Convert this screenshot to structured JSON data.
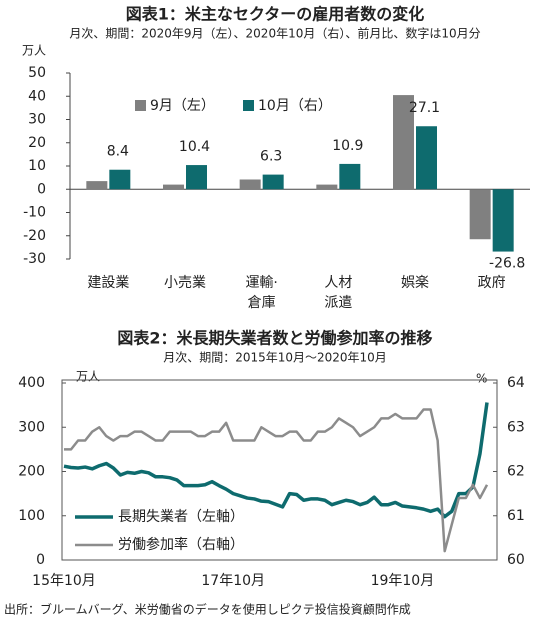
{
  "chart_data": [
    {
      "type": "bar",
      "title": "図表1：米主なセクターの雇用者数の変化",
      "subtitle": "月次、期間：2020年9月（左）、2020年10月（右）、前月比、数字は10月分",
      "y_unit": "万人",
      "categories": [
        "建設業",
        "小売業",
        "運輸·\n倉庫",
        "人材\n派遣",
        "娯楽",
        "政府"
      ],
      "series": [
        {
          "name": "9月（左）",
          "color": "#808080",
          "values": [
            3.5,
            2,
            4.2,
            2,
            40.5,
            -21.5
          ]
        },
        {
          "name": "10月（右）",
          "color": "#0e6b6e",
          "values": [
            8.4,
            10.4,
            6.3,
            10.9,
            27.1,
            -26.8
          ],
          "data_labels": true
        }
      ],
      "ylim": [
        -30,
        50
      ],
      "yticks": [
        -30,
        -20,
        -10,
        0,
        10,
        20,
        30,
        40,
        50
      ],
      "grid": false
    },
    {
      "type": "line",
      "title": "図表2：米長期失業者数と労働参加率の推移",
      "subtitle": "月次、期間：2015年10月～2020年10月",
      "y_unit": "万人",
      "y2_unit": "%",
      "categories": [
        "15年10月",
        null,
        null,
        null,
        null,
        null,
        null,
        null,
        null,
        null,
        null,
        null,
        null,
        null,
        null,
        null,
        null,
        null,
        null,
        null,
        null,
        null,
        null,
        null,
        "17年10月",
        null,
        null,
        null,
        null,
        null,
        null,
        null,
        null,
        null,
        null,
        null,
        null,
        null,
        null,
        null,
        null,
        null,
        null,
        null,
        null,
        null,
        null,
        null,
        "19年10月",
        null,
        null,
        null,
        null,
        null,
        null,
        null,
        null,
        null,
        null,
        null,
        null
      ],
      "series": [
        {
          "name": "長期失業者（左軸）",
          "color": "#0e6b6e",
          "values": [
            212,
            209,
            208,
            210,
            206,
            213,
            218,
            208,
            192,
            198,
            196,
            200,
            197,
            188,
            188,
            186,
            181,
            168,
            168,
            168,
            170,
            177,
            168,
            160,
            150,
            145,
            140,
            138,
            133,
            132,
            126,
            120,
            150,
            148,
            135,
            138,
            138,
            135,
            125,
            130,
            135,
            132,
            125,
            130,
            142,
            125,
            125,
            130,
            122,
            120,
            118,
            115,
            110,
            115,
            98,
            110,
            150,
            150,
            165,
            240,
            356
          ]
        },
        {
          "name": "労働参加率（右軸）",
          "color": "#8c8c8c",
          "axis": "y2",
          "values": [
            62.5,
            62.5,
            62.7,
            62.7,
            62.9,
            63.0,
            62.8,
            62.7,
            62.8,
            62.8,
            62.9,
            62.9,
            62.8,
            62.7,
            62.7,
            62.9,
            62.9,
            62.9,
            62.9,
            62.8,
            62.8,
            62.9,
            62.9,
            63.1,
            62.7,
            62.7,
            62.7,
            62.7,
            63.0,
            62.9,
            62.8,
            62.8,
            62.9,
            62.9,
            62.7,
            62.7,
            62.9,
            62.9,
            63.0,
            63.2,
            63.1,
            63.0,
            62.8,
            62.9,
            63.0,
            63.2,
            63.2,
            63.3,
            63.2,
            63.2,
            63.2,
            63.4,
            63.4,
            62.7,
            60.2,
            60.8,
            61.4,
            61.4,
            61.7,
            61.4,
            61.7
          ]
        }
      ],
      "ylim": [
        0,
        400
      ],
      "yticks": [
        0,
        100,
        200,
        300,
        400
      ],
      "y2lim": [
        60,
        64
      ],
      "y2ticks": [
        60,
        61,
        62,
        63,
        64
      ],
      "grid": false
    }
  ],
  "source": "出所：ブルームバーグ、米労働省のデータを使用しピクテ投信投資顧問作成"
}
